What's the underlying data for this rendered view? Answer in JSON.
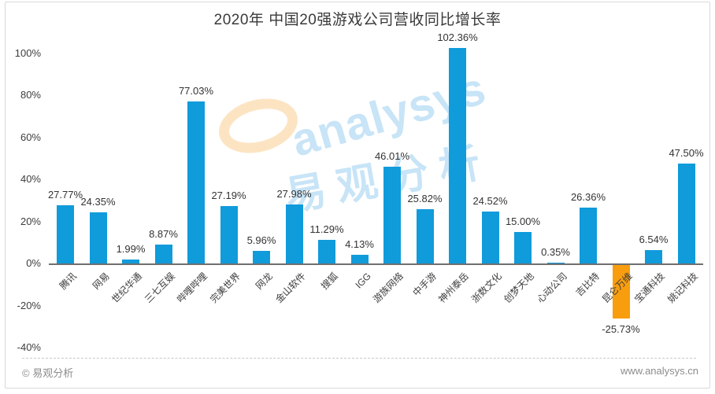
{
  "watermark": {
    "text_en": "analysys",
    "text_cn": "易观分析"
  },
  "footer": {
    "copyright": "© 易观分析",
    "website": "www.analysys.cn"
  },
  "colors": {
    "bar": "#109BDB",
    "bar_negative": "#F89D0E",
    "watermark_blue": "rgba(110,185,235,0.38)",
    "watermark_orange": "rgba(246,166,56,0.30)"
  },
  "chart_data": {
    "type": "bar",
    "title": "2020年 中国20强游戏公司营收同比增长率",
    "categories": [
      "腾讯",
      "网易",
      "世纪华通",
      "三七互娱",
      "哔哩哔哩",
      "完美世界",
      "网龙",
      "金山软件",
      "搜狐",
      "IGG",
      "游族网络",
      "中手游",
      "神州泰岳",
      "浙数文化",
      "创梦天地",
      "心动公司",
      "吉比特",
      "昆仑万维",
      "宝通科技",
      "姚记科技"
    ],
    "values": [
      27.77,
      24.35,
      1.99,
      8.87,
      77.03,
      27.19,
      5.96,
      27.98,
      11.29,
      4.13,
      46.01,
      25.82,
      102.36,
      24.52,
      15.0,
      0.35,
      26.36,
      -25.73,
      6.54,
      47.5
    ],
    "labels": [
      "27.77%",
      "24.35%",
      "1.99%",
      "8.87%",
      "77.03%",
      "27.19%",
      "5.96%",
      "27.98%",
      "11.29%",
      "4.13%",
      "46.01%",
      "25.82%",
      "102.36%",
      "24.52%",
      "15.00%",
      "0.35%",
      "26.36%",
      "-25.73%",
      "6.54%",
      "47.50%"
    ],
    "xlabel": "",
    "ylabel": "",
    "y_ticks": [
      "100%",
      "80%",
      "60%",
      "40%",
      "20%",
      "0%",
      "-20%",
      "-40%"
    ],
    "y_tick_values": [
      100,
      80,
      60,
      40,
      20,
      0,
      -20,
      -40
    ],
    "ylim": [
      -40,
      110
    ],
    "grid": false,
    "legend": false,
    "negative_bar_color_differs": true
  }
}
